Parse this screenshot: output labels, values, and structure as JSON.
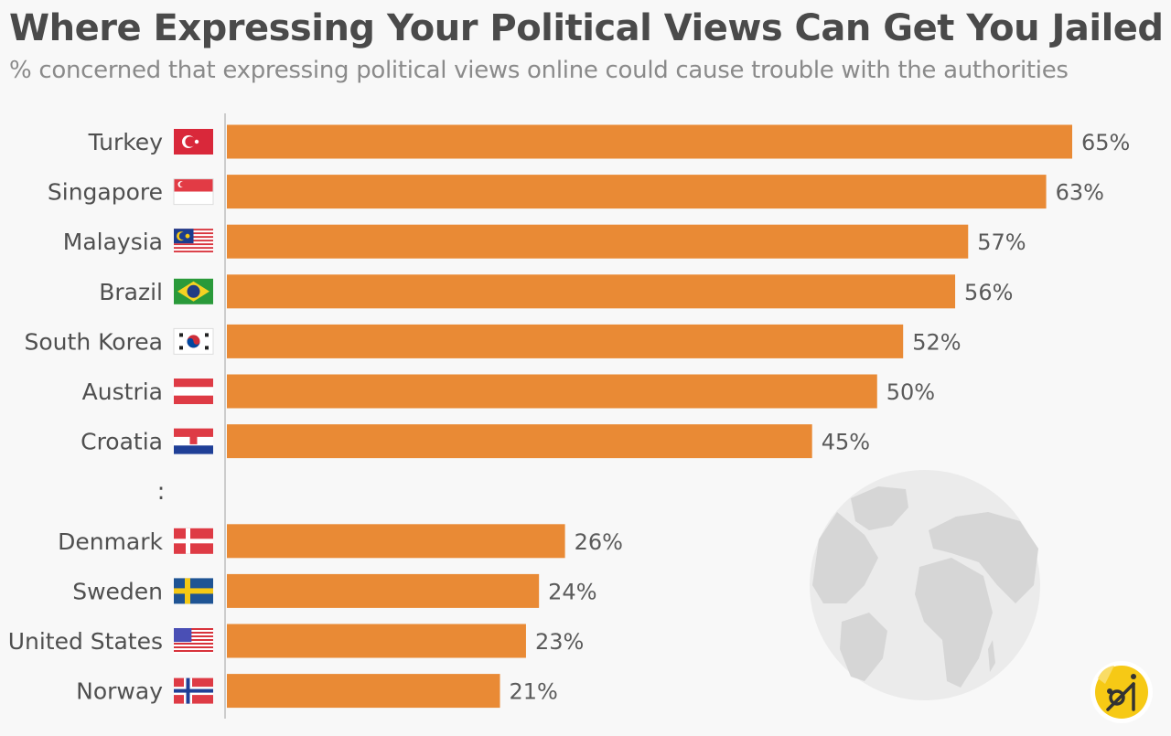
{
  "chart_data": {
    "type": "bar",
    "orientation": "horizontal",
    "title": "Where Expressing Your Political Views Can Get You Jailed",
    "subtitle": "% concerned that expressing political views online could cause trouble with the authorities",
    "xlabel": "",
    "ylabel": "",
    "xlim": [
      0,
      65
    ],
    "grid": false,
    "unit": "%",
    "gap_marker": ":",
    "gap_after_index": 6,
    "categories": [
      "Turkey",
      "Singapore",
      "Malaysia",
      "Brazil",
      "South Korea",
      "Austria",
      "Croatia",
      "Denmark",
      "Sweden",
      "United States",
      "Norway"
    ],
    "values": [
      65,
      63,
      57,
      56,
      52,
      50,
      45,
      26,
      24,
      23,
      21
    ],
    "value_labels": [
      "65%",
      "63%",
      "57%",
      "56%",
      "52%",
      "50%",
      "45%",
      "26%",
      "24%",
      "23%",
      "21%"
    ],
    "flags": [
      "turkey-flag-icon",
      "singapore-flag-icon",
      "malaysia-flag-icon",
      "brazil-flag-icon",
      "south-korea-flag-icon",
      "austria-flag-icon",
      "croatia-flag-icon",
      "denmark-flag-icon",
      "sweden-flag-icon",
      "united-states-flag-icon",
      "norway-flag-icon"
    ],
    "bar_color": "#e98a35"
  },
  "colors": {
    "bar": "#e98a35",
    "background": "#f8f8f8",
    "title": "#4a4a4a",
    "subtitle": "#8a8a8a",
    "axis": "#cccccc",
    "globe": "#e6e6e6",
    "land": "#d2d2d2",
    "logo": "#f6c915"
  },
  "decorations": {
    "globe": "globe-icon",
    "logo": "brand-logo-icon"
  }
}
